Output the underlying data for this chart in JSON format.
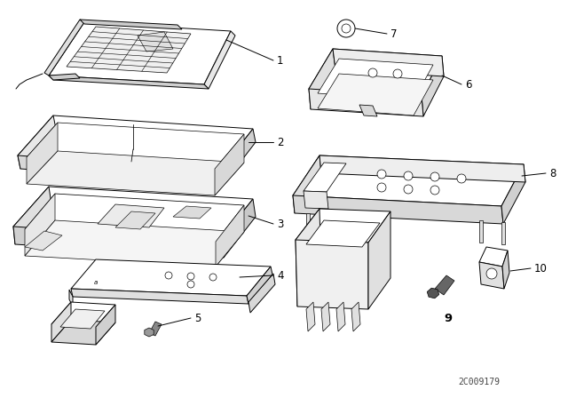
{
  "bg_color": "#ffffff",
  "line_color": "#000000",
  "fig_width": 6.4,
  "fig_height": 4.48,
  "dpi": 100,
  "watermark": "2C009179",
  "label_fontsize": 8.5,
  "lw": 0.7
}
